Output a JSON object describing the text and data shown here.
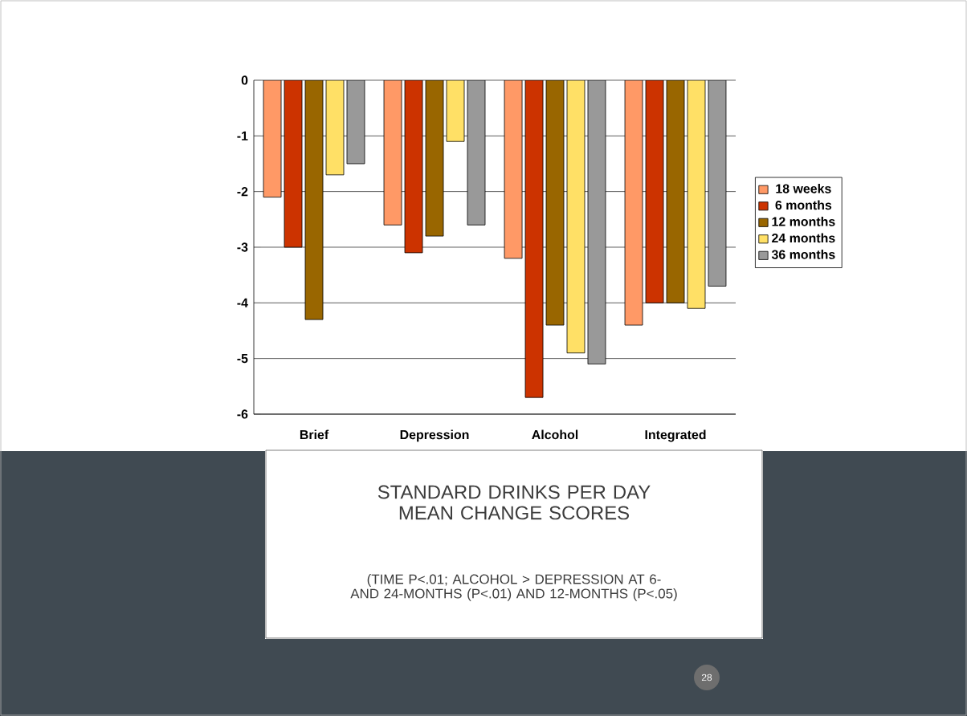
{
  "chart_data": {
    "type": "bar",
    "title": "STANDARD DRINKS PER DAY MEAN CHANGE SCORES",
    "subtitle": "(TIME P<.01; ALCOHOL > DEPRESSION AT 6- AND 24-MONTHS (P<.01) AND 12-MONTHS (P<.05)",
    "categories": [
      "Brief",
      "Depression",
      "Alcohol",
      "Integrated"
    ],
    "series": [
      {
        "name": "18 weeks",
        "color": "#ff9966",
        "values": [
          -2.1,
          -2.6,
          -3.2,
          -4.4
        ]
      },
      {
        "name": "6 months",
        "color": "#cc3300",
        "values": [
          -3.0,
          -3.1,
          -5.7,
          -4.0
        ]
      },
      {
        "name": "12 months",
        "color": "#996600",
        "values": [
          -4.3,
          -2.8,
          -4.4,
          -4.0
        ]
      },
      {
        "name": "24 months",
        "color": "#ffe066",
        "values": [
          -1.7,
          -1.1,
          -4.9,
          -4.1
        ]
      },
      {
        "name": "36 months",
        "color": "#999999",
        "values": [
          -1.5,
          -2.6,
          -5.1,
          -3.7
        ]
      }
    ],
    "ylim": [
      -6,
      0
    ],
    "yticks": [
      -6,
      -5,
      -4,
      -3,
      -2,
      -1,
      0
    ],
    "grid": "y",
    "legend": "right",
    "annotations": [
      "28"
    ]
  }
}
